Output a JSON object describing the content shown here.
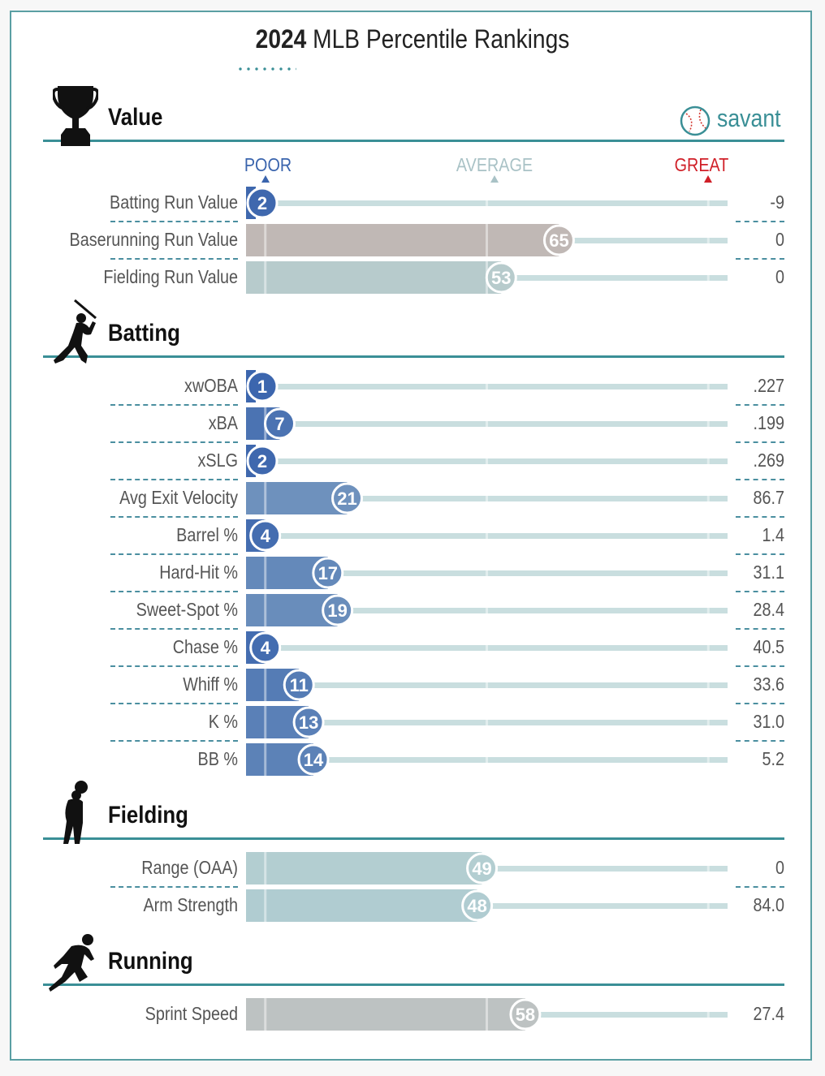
{
  "page": {
    "title_bold": "2024",
    "title_rest": "MLB Percentile Rankings",
    "brand": "savant",
    "scale_labels": {
      "poor": "POOR",
      "average": "AVERAGE",
      "great": "GREAT"
    },
    "colors": {
      "accent": "#3a8f96",
      "poor": "#3a64ad",
      "average": "#a9c2c6",
      "great": "#d02028"
    }
  },
  "chart_data": {
    "type": "bar",
    "orientation": "horizontal",
    "xlim": [
      0,
      100
    ],
    "title": "2024 MLB Percentile Rankings",
    "axis_labels": [
      "POOR",
      "AVERAGE",
      "GREAT"
    ],
    "sections": [
      {
        "name": "Value",
        "icon": "trophy-icon",
        "metrics": [
          {
            "label": "Batting Run Value",
            "percentile": 2,
            "value": "-9"
          },
          {
            "label": "Baserunning Run Value",
            "percentile": 65,
            "value": "0"
          },
          {
            "label": "Fielding Run Value",
            "percentile": 53,
            "value": "0"
          }
        ]
      },
      {
        "name": "Batting",
        "icon": "batter-icon",
        "metrics": [
          {
            "label": "xwOBA",
            "percentile": 1,
            "value": ".227"
          },
          {
            "label": "xBA",
            "percentile": 7,
            "value": ".199"
          },
          {
            "label": "xSLG",
            "percentile": 2,
            "value": ".269"
          },
          {
            "label": "Avg Exit Velocity",
            "percentile": 21,
            "value": "86.7"
          },
          {
            "label": "Barrel %",
            "percentile": 4,
            "value": "1.4"
          },
          {
            "label": "Hard-Hit %",
            "percentile": 17,
            "value": "31.1"
          },
          {
            "label": "Sweet-Spot %",
            "percentile": 19,
            "value": "28.4"
          },
          {
            "label": "Chase %",
            "percentile": 4,
            "value": "40.5"
          },
          {
            "label": "Whiff %",
            "percentile": 11,
            "value": "33.6"
          },
          {
            "label": "K %",
            "percentile": 13,
            "value": "31.0"
          },
          {
            "label": "BB %",
            "percentile": 14,
            "value": "5.2"
          }
        ]
      },
      {
        "name": "Fielding",
        "icon": "fielder-icon",
        "metrics": [
          {
            "label": "Range (OAA)",
            "percentile": 49,
            "value": "0"
          },
          {
            "label": "Arm Strength",
            "percentile": 48,
            "value": "84.0"
          }
        ]
      },
      {
        "name": "Running",
        "icon": "runner-icon",
        "metrics": [
          {
            "label": "Sprint Speed",
            "percentile": 58,
            "value": "27.4",
            "neutral": true
          }
        ]
      }
    ]
  }
}
